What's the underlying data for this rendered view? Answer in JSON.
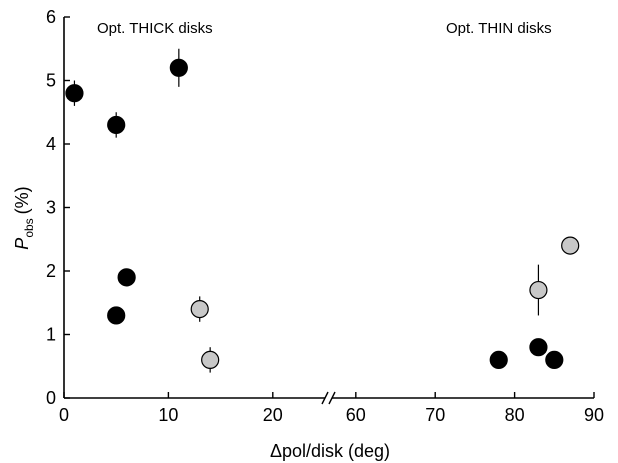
{
  "chart_data": {
    "type": "scatter",
    "title": "",
    "xlabel": "Δpol/disk (deg)",
    "ylabel": "P",
    "ylabel_subscript": "obs",
    "ylabel_unit": "(%)",
    "ylim": [
      0,
      6
    ],
    "x_segments": [
      {
        "range": [
          0,
          25
        ],
        "ticks": [
          0,
          10,
          20
        ]
      },
      {
        "range": [
          57,
          90
        ],
        "ticks": [
          60,
          70,
          80,
          90
        ]
      }
    ],
    "y_ticks": [
      0,
      1,
      2,
      3,
      4,
      5,
      6
    ],
    "axis_break": true,
    "grid": false,
    "annotations": [
      "Opt. THICK disks",
      "Opt. THIN disks"
    ],
    "colors": {
      "filled": "#000000",
      "grey": "#c8c8c8",
      "stroke": "#000000"
    },
    "series": [
      {
        "marker": "filled",
        "points": [
          {
            "x": 1,
            "y": 4.8,
            "err": 0.2
          },
          {
            "x": 5,
            "y": 4.3,
            "err": 0.2
          },
          {
            "x": 11,
            "y": 5.2,
            "err": 0.3
          },
          {
            "x": 6,
            "y": 1.9,
            "err": 0
          },
          {
            "x": 5,
            "y": 1.3,
            "err": 0
          },
          {
            "x": 78,
            "y": 0.6,
            "err": 0
          },
          {
            "x": 83,
            "y": 0.8,
            "err": 0
          },
          {
            "x": 85,
            "y": 0.6,
            "err": 0
          }
        ]
      },
      {
        "marker": "grey",
        "points": [
          {
            "x": 13,
            "y": 1.4,
            "err": 0.2
          },
          {
            "x": 14,
            "y": 0.6,
            "err": 0.2
          },
          {
            "x": 83,
            "y": 1.7,
            "err": 0.4
          },
          {
            "x": 87,
            "y": 2.4,
            "err": 0.1
          }
        ]
      }
    ]
  }
}
